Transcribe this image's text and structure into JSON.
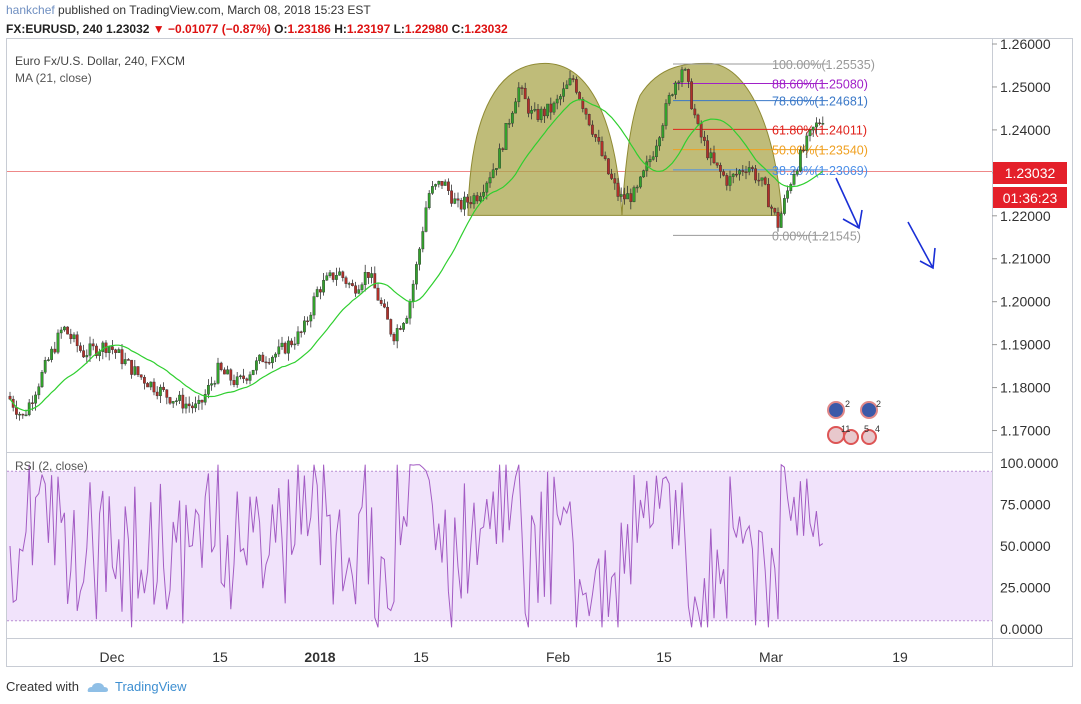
{
  "header": {
    "publisher": "hankchef",
    "published_text": "published on TradingView.com, March 08, 2018 15:23 EST",
    "symbol": "FX:EURUSD, 240",
    "last": "1.23032",
    "change": "−0.01077 (−0.87%)",
    "o_label": "O:",
    "o": "1.23186",
    "h_label": "H:",
    "h": "1.23197",
    "l_label": "L:",
    "l": "1.22980",
    "c_label": "C:",
    "c": "1.23032"
  },
  "legend": {
    "title": "Euro Fx/U.S. Dollar, 240, FXCM",
    "ma": "MA (21, close)",
    "rsi": "RSI (2, close)"
  },
  "price_badge": {
    "value": "1.23032",
    "countdown": "01:36:23"
  },
  "footer": {
    "created_with": "Created with",
    "brand": "TradingView"
  },
  "colors": {
    "up": "#33a02c",
    "down": "#b0302a",
    "ma": "#2fcf2f",
    "rsi": "#a35cc4",
    "rsi_fill": "#f1e3fb",
    "pattern": "#a9a54c",
    "arrow": "#1a2fd6",
    "badge": "#e4202a"
  },
  "chart_data": [
    {
      "type": "candlestick",
      "title": "Euro Fx/U.S. Dollar, 240, FXCM",
      "ylim": [
        1.165,
        1.2614
      ],
      "y_ticks": [
        "1.26000",
        "1.25000",
        "1.24000",
        "1.23000",
        "1.22000",
        "1.21000",
        "1.20000",
        "1.19000",
        "1.18000",
        "1.17000"
      ],
      "x_ticks": [
        "Dec",
        "15",
        "2018",
        "15",
        "Feb",
        "15",
        "Mar",
        "19"
      ],
      "last_price": 1.23032,
      "ma_period": 21,
      "path_keypoints": [
        [
          0,
          1.178
        ],
        [
          15,
          1.173
        ],
        [
          55,
          1.194
        ],
        [
          75,
          1.188
        ],
        [
          100,
          1.19
        ],
        [
          130,
          1.183
        ],
        [
          160,
          1.178
        ],
        [
          190,
          1.175
        ],
        [
          210,
          1.184
        ],
        [
          230,
          1.181
        ],
        [
          255,
          1.187
        ],
        [
          270,
          1.188
        ],
        [
          295,
          1.193
        ],
        [
          310,
          1.203
        ],
        [
          330,
          1.207
        ],
        [
          345,
          1.203
        ],
        [
          360,
          1.207
        ],
        [
          375,
          1.198
        ],
        [
          385,
          1.192
        ],
        [
          400,
          1.198
        ],
        [
          410,
          1.21
        ],
        [
          420,
          1.225
        ],
        [
          435,
          1.228
        ],
        [
          450,
          1.222
        ],
        [
          470,
          1.225
        ],
        [
          490,
          1.233
        ],
        [
          510,
          1.25
        ],
        [
          525,
          1.243
        ],
        [
          545,
          1.245
        ],
        [
          565,
          1.252
        ],
        [
          585,
          1.24
        ],
        [
          600,
          1.23
        ],
        [
          612,
          1.224
        ],
        [
          628,
          1.225
        ],
        [
          645,
          1.235
        ],
        [
          665,
          1.25
        ],
        [
          675,
          1.255
        ],
        [
          690,
          1.24
        ],
        [
          705,
          1.232
        ],
        [
          720,
          1.228
        ],
        [
          740,
          1.232
        ],
        [
          755,
          1.227
        ],
        [
          770,
          1.218
        ],
        [
          785,
          1.23
        ],
        [
          805,
          1.24
        ],
        [
          815,
          1.243
        ],
        [
          828,
          1.23
        ]
      ],
      "fibonacci": [
        {
          "label": "100.00%(1.25535)",
          "level": 1.25535,
          "color": "#999999"
        },
        {
          "label": "88.60%(1.25080)",
          "level": 1.2508,
          "color": "#a020c8"
        },
        {
          "label": "78.60%(1.24681)",
          "level": 1.24681,
          "color": "#3a78c8"
        },
        {
          "label": "61.80%(1.24011)",
          "level": 1.24011,
          "color": "#e0221b"
        },
        {
          "label": "50.00%(1.23540)",
          "level": 1.2354,
          "color": "#f0a020"
        },
        {
          "label": "38.20%(1.23069)",
          "level": 1.23069,
          "color": "#4a8ee8"
        },
        {
          "label": "0.00%(1.21545)",
          "level": 1.21545,
          "color": "#999999"
        }
      ],
      "pattern": "double top"
    },
    {
      "type": "line",
      "title": "RSI (2, close)",
      "ylim": [
        0,
        100
      ],
      "y_ticks": [
        "100.0000",
        "75.0000",
        "50.0000",
        "25.0000",
        "0.0000"
      ],
      "band": [
        5,
        95
      ]
    }
  ]
}
